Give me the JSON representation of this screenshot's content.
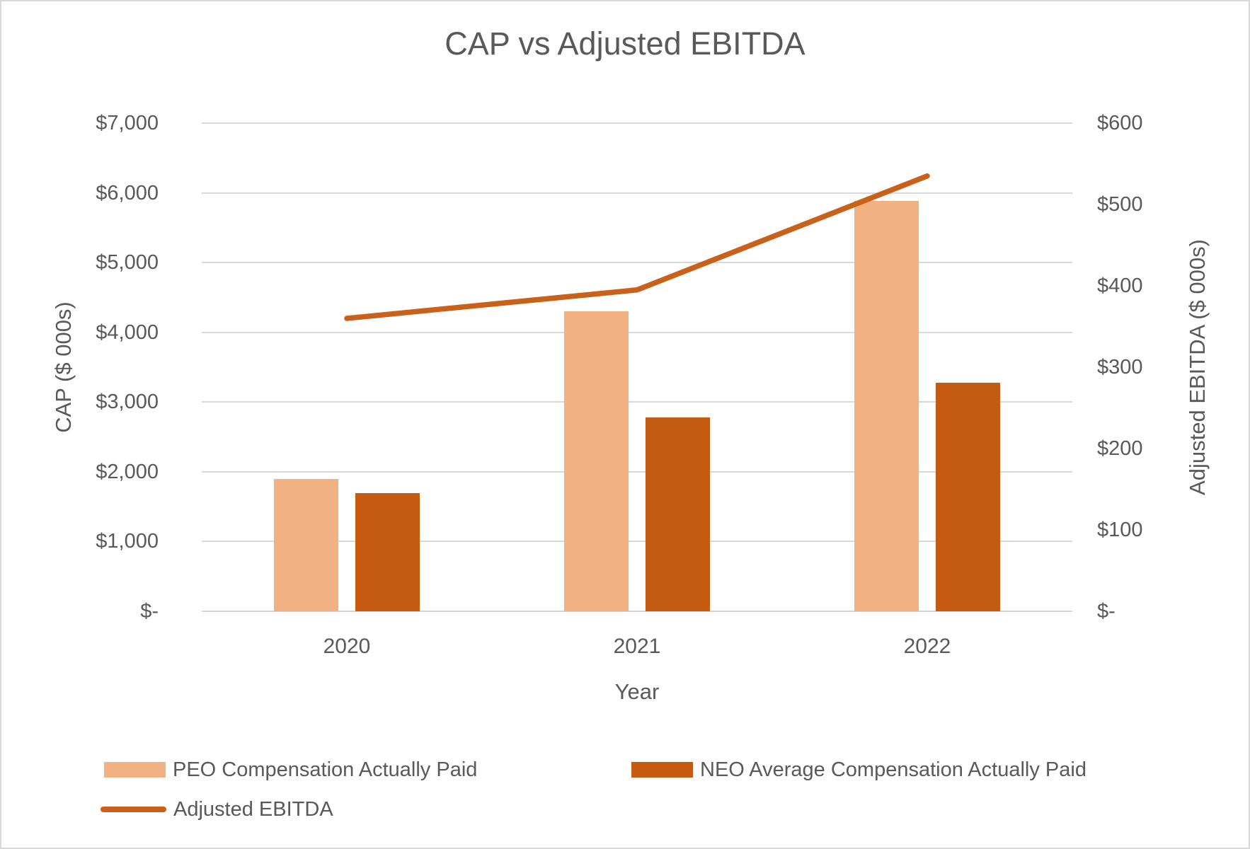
{
  "title": "CAP vs Adjusted EBITDA",
  "colors": {
    "text": "#595959",
    "gridline": "#d9d9d9",
    "frame_border": "#d9d9d9",
    "peo_bar": "#f2b183",
    "neo_bar": "#c55a11",
    "ebitda_line": "#c9611b"
  },
  "chart_data": {
    "type": "bar",
    "subtype": "combo-bar-line-dual-axis",
    "title": "CAP vs Adjusted EBITDA",
    "categories": [
      "2020",
      "2021",
      "2022"
    ],
    "series": [
      {
        "name": "PEO Compensation Actually Paid",
        "type": "bar",
        "axis": "left",
        "color": "#f2b183",
        "values": [
          1900,
          4300,
          5880
        ]
      },
      {
        "name": "NEO Average Compensation Actually Paid",
        "type": "bar",
        "axis": "left",
        "color": "#c55a11",
        "values": [
          1690,
          2775,
          3280
        ]
      },
      {
        "name": "Adjusted EBITDA",
        "type": "line",
        "axis": "right",
        "color": "#c9611b",
        "values": [
          360,
          395,
          535
        ]
      }
    ],
    "x_axis": {
      "title": "Year"
    },
    "left_axis": {
      "title": "CAP ($ 000s)",
      "min": 0,
      "max": 7000,
      "step": 1000,
      "ticks": [
        "$-",
        "$1,000",
        "$2,000",
        "$3,000",
        "$4,000",
        "$5,000",
        "$6,000",
        "$7,000"
      ]
    },
    "right_axis": {
      "title": "Adjusted EBITDA ($ 000s)",
      "min": 0,
      "max": 600,
      "step": 100,
      "ticks": [
        "$-",
        "$100",
        "$200",
        "$300",
        "$400",
        "$500",
        "$600"
      ]
    },
    "grid": true,
    "legend_position": "bottom-left"
  }
}
